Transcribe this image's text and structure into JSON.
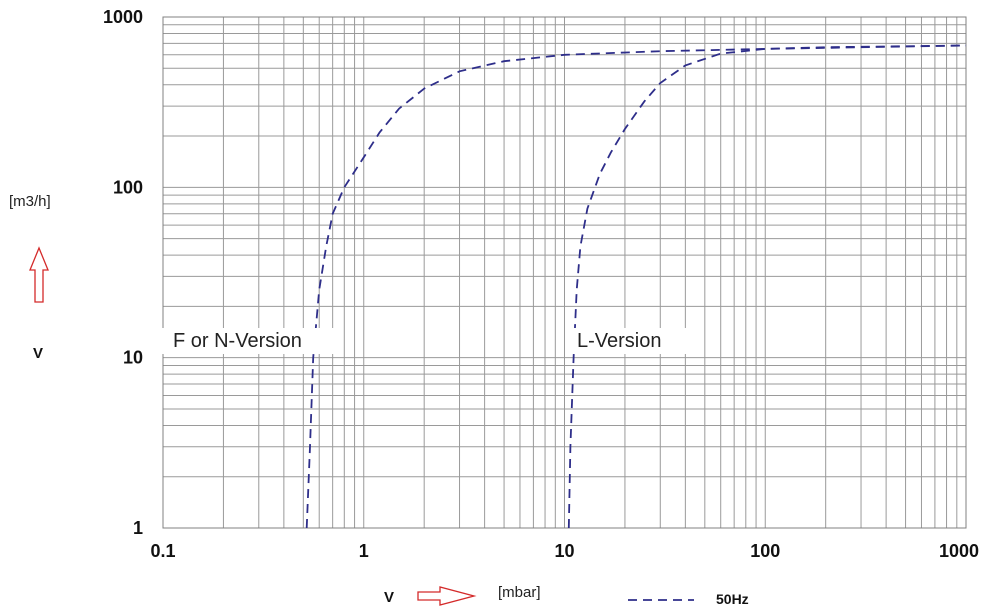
{
  "chart_data": {
    "type": "line",
    "x_scale": "log",
    "y_scale": "log",
    "xlim": [
      0.1,
      1000
    ],
    "ylim": [
      1,
      1000
    ],
    "grid": true,
    "x_ticks": [
      "0.1",
      "1",
      "10",
      "100",
      "1000"
    ],
    "y_ticks": [
      "1",
      "10",
      "100",
      "1000"
    ],
    "xlabel": {
      "symbol": "V",
      "unit": "[mbar]"
    },
    "ylabel": {
      "symbol": "V",
      "unit": "[m3/h]"
    },
    "legend": {
      "label": "50Hz",
      "position": "bottom-center"
    },
    "colors": {
      "series": "#2e2e8a",
      "arrow": "#d42a2a",
      "grid": "#9a9a9a"
    },
    "series": [
      {
        "name": "F or N-Version",
        "x": [
          0.52,
          0.54,
          0.56,
          0.6,
          0.65,
          0.7,
          0.8,
          1,
          1.2,
          1.5,
          2,
          3,
          5,
          10,
          30,
          100,
          1000
        ],
        "y": [
          1,
          3,
          10,
          25,
          45,
          70,
          100,
          150,
          210,
          290,
          380,
          480,
          550,
          600,
          630,
          650,
          680
        ]
      },
      {
        "name": "L-Version",
        "x": [
          10.5,
          10.7,
          11.1,
          11.5,
          12,
          13,
          15,
          17,
          20,
          25,
          30,
          40,
          60,
          100,
          200,
          1000
        ],
        "y": [
          1,
          3,
          10,
          25,
          45,
          75,
          120,
          160,
          220,
          320,
          410,
          520,
          610,
          650,
          665,
          680
        ]
      }
    ]
  }
}
